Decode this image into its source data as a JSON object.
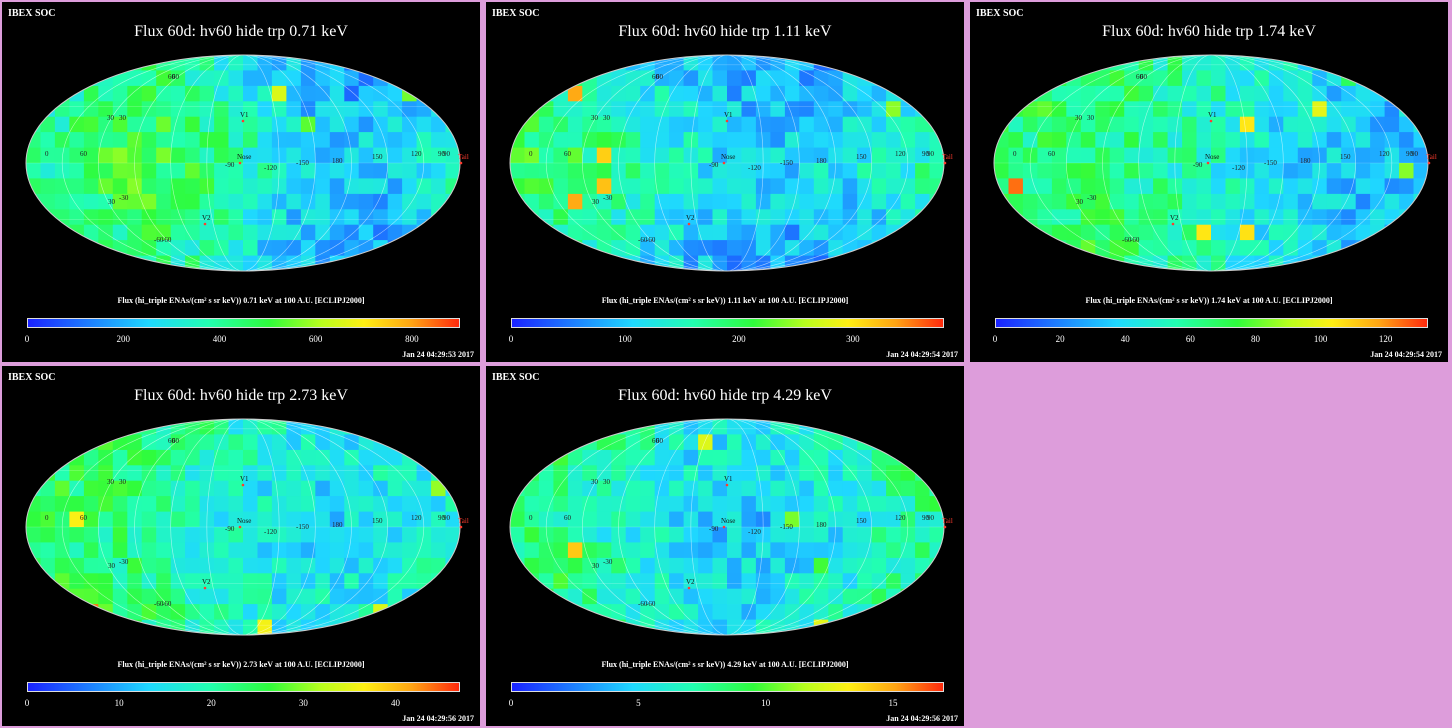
{
  "header": "IBEX SOC",
  "caption_prefix": "Flux (hi_triple ENAs/(cm² s sr keV)) ",
  "caption_suffix": " at 100 A.U. [ECLIPJ2000]",
  "map_labels": {
    "grid": [
      "60",
      "30",
      "0",
      "-30",
      "-60",
      "-90",
      "-120",
      "-150",
      "180",
      "150",
      "120",
      "90",
      "60",
      "30",
      "-60",
      "30",
      "60",
      "90"
    ],
    "markers": [
      "V1",
      "V2",
      "Nose",
      "Tail"
    ]
  },
  "panels": [
    {
      "title": "Flux 60d: hv60 hide trp 0.71 keV",
      "energy": "0.71 keV",
      "ticks": [
        "0",
        "200",
        "400",
        "600",
        "800"
      ],
      "tick_values": [
        0,
        200,
        400,
        600,
        800
      ],
      "max": 900,
      "timestamp": "Jan 24 04:29:53 2017"
    },
    {
      "title": "Flux 60d: hv60 hide trp 1.11 keV",
      "energy": "1.11 keV",
      "ticks": [
        "0",
        "100",
        "200",
        "300"
      ],
      "tick_values": [
        0,
        100,
        200,
        300
      ],
      "max": 380,
      "timestamp": "Jan 24 04:29:54 2017"
    },
    {
      "title": "Flux 60d: hv60 hide trp 1.74 keV",
      "energy": "1.74 keV",
      "ticks": [
        "0",
        "20",
        "40",
        "60",
        "80",
        "100",
        "120"
      ],
      "tick_values": [
        0,
        20,
        40,
        60,
        80,
        100,
        120
      ],
      "max": 133,
      "timestamp": "Jan 24 04:29:54 2017"
    },
    {
      "title": "Flux 60d: hv60 hide trp 2.73 keV",
      "energy": "2.73 keV",
      "ticks": [
        "0",
        "10",
        "20",
        "30",
        "40"
      ],
      "tick_values": [
        0,
        10,
        20,
        30,
        40
      ],
      "max": 47,
      "timestamp": "Jan 24 04:29:56 2017"
    },
    {
      "title": "Flux 60d: hv60 hide trp 4.29 keV",
      "energy": "4.29 keV",
      "ticks": [
        "0",
        "5",
        "10",
        "15"
      ],
      "tick_values": [
        0,
        5,
        10,
        15
      ],
      "max": 17,
      "timestamp": "Jan 24 04:29:56 2017"
    }
  ],
  "colors": {
    "background": "#dd9ddb",
    "panel": "#000000",
    "marker": "#ff3b2f"
  }
}
